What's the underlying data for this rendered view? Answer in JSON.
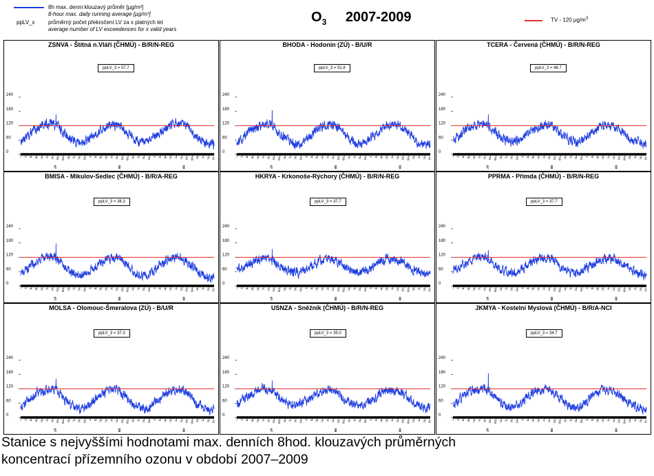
{
  "legend": {
    "line_label": "8h max. denni klouzavý průměr [µg/m³]",
    "line_label_en": "8-hour max. daily running average [µg/m³]",
    "pplv_key": "ppLV_x",
    "pplv_desc": "průměrný počet překročení LV za x platných let",
    "pplv_desc_en": "average number of LV exceedences for x valid years",
    "series_color": "#1f3fe0"
  },
  "title": {
    "symbol": "O",
    "subscript": "3",
    "years": "2007-2009"
  },
  "tv_legend": {
    "label": "TV - 120 µg/m",
    "sup": "3",
    "color": "#e03030"
  },
  "caption": {
    "line1": "Stanice s nejvyššími hodnotami max. denních 8hod. klouzavých průměrných",
    "line2": "koncentrací přízemního ozonu v období 2007–2009"
  },
  "chart_data": [
    {
      "type": "line",
      "title": "ZSNVA - Štítná n.Vláří (ČHMÚ) - B/R/N-REG",
      "pplv": "ppLV_3 = 57.7",
      "ylim": [
        0,
        240
      ],
      "yticks": [
        0,
        60,
        120,
        180,
        240
      ],
      "threshold": 120,
      "months": [
        "I",
        "II",
        "III",
        "IV",
        "V",
        "VI",
        "VII",
        "VIII",
        "IX",
        "X",
        "XI",
        "XII"
      ],
      "years": [
        "07",
        "08",
        "09"
      ],
      "monthly_avg": [
        55,
        72,
        90,
        108,
        122,
        128,
        130,
        118,
        90,
        70,
        55,
        48,
        52,
        70,
        88,
        104,
        115,
        122,
        124,
        112,
        88,
        68,
        52,
        46,
        58,
        74,
        92,
        110,
        124,
        130,
        126,
        114,
        90,
        70,
        52,
        44
      ],
      "peak": 168
    },
    {
      "type": "line",
      "title": "BHODA - Hodonín (ZÚ) - B/U/R",
      "pplv": "ppLV_3 = 51.8",
      "ylim": [
        0,
        240
      ],
      "yticks": [
        0,
        60,
        120,
        180,
        240
      ],
      "threshold": 120,
      "months": [
        "I",
        "II",
        "III",
        "IV",
        "V",
        "VI",
        "VII",
        "VIII",
        "IX",
        "X",
        "XI",
        "XII"
      ],
      "years": [
        "07",
        "08",
        "09"
      ],
      "monthly_avg": [
        48,
        66,
        86,
        104,
        118,
        126,
        128,
        116,
        88,
        66,
        50,
        42,
        46,
        64,
        86,
        102,
        116,
        122,
        128,
        112,
        86,
        64,
        48,
        40,
        52,
        70,
        90,
        108,
        120,
        126,
        124,
        110,
        86,
        64,
        46,
        38
      ],
      "peak": 185
    },
    {
      "type": "line",
      "title": "TCERA - Červená (ČHMÚ) - B/R/N-REG",
      "pplv": "ppLV_3 = 48.7",
      "ylim": [
        0,
        240
      ],
      "yticks": [
        0,
        60,
        120,
        180,
        240
      ],
      "threshold": 120,
      "months": [
        "I",
        "II",
        "III",
        "IV",
        "V",
        "VI",
        "VII",
        "VIII",
        "IX",
        "X",
        "XI",
        "XII"
      ],
      "years": [
        "07",
        "08",
        "09"
      ],
      "monthly_avg": [
        60,
        76,
        94,
        110,
        122,
        126,
        124,
        112,
        86,
        70,
        58,
        52,
        58,
        72,
        90,
        104,
        116,
        120,
        122,
        110,
        86,
        68,
        56,
        50,
        60,
        76,
        94,
        110,
        120,
        122,
        118,
        104,
        84,
        66,
        52,
        44
      ],
      "peak": 168
    },
    {
      "type": "line",
      "title": "BMISA - Mikulov-Sedlec (ČHMÚ) - B/R/A-REG",
      "pplv": "ppLV_3 = 38.3",
      "ylim": [
        0,
        240
      ],
      "yticks": [
        0,
        60,
        120,
        180,
        240
      ],
      "threshold": 120,
      "months": [
        "I",
        "II",
        "III",
        "IV",
        "V",
        "VI",
        "VII",
        "VIII",
        "IX",
        "X",
        "XI",
        "XII"
      ],
      "years": [
        "07",
        "08",
        "09"
      ],
      "monthly_avg": [
        52,
        70,
        88,
        104,
        116,
        122,
        124,
        110,
        84,
        62,
        48,
        42,
        46,
        64,
        84,
        100,
        110,
        116,
        118,
        104,
        80,
        60,
        46,
        40,
        50,
        68,
        88,
        104,
        114,
        118,
        114,
        100,
        78,
        58,
        44,
        36
      ],
      "peak": 178
    },
    {
      "type": "line",
      "title": "HKRYA - Krkonoše-Rýchory (ČHMÚ) - B/R/N-REG",
      "pplv": "ppLV_3 = 37.7",
      "ylim": [
        0,
        240
      ],
      "yticks": [
        0,
        60,
        120,
        180,
        240
      ],
      "threshold": 120,
      "months": [
        "I",
        "II",
        "III",
        "IV",
        "V",
        "VI",
        "VII",
        "VIII",
        "IX",
        "X",
        "XI",
        "XII"
      ],
      "years": [
        "07",
        "08",
        "09"
      ],
      "monthly_avg": [
        62,
        76,
        92,
        104,
        112,
        114,
        110,
        100,
        82,
        70,
        60,
        56,
        60,
        74,
        90,
        102,
        110,
        112,
        110,
        98,
        80,
        68,
        58,
        54,
        64,
        78,
        94,
        106,
        114,
        114,
        108,
        96,
        80,
        66,
        56,
        50
      ],
      "peak": 155
    },
    {
      "type": "line",
      "title": "PPRMA - Přimda (ČHMÚ) - B/R/N-REG",
      "pplv": "ppLV_3 = 37.7",
      "ylim": [
        0,
        240
      ],
      "yticks": [
        0,
        60,
        120,
        180,
        240
      ],
      "threshold": 120,
      "months": [
        "I",
        "II",
        "III",
        "IV",
        "V",
        "VI",
        "VII",
        "VIII",
        "IX",
        "X",
        "XI",
        "XII"
      ],
      "years": [
        "07",
        "08",
        "09"
      ],
      "monthly_avg": [
        62,
        76,
        92,
        106,
        116,
        118,
        116,
        104,
        84,
        70,
        60,
        54,
        60,
        74,
        90,
        104,
        114,
        116,
        116,
        102,
        82,
        68,
        58,
        52,
        62,
        76,
        92,
        106,
        114,
        116,
        112,
        100,
        82,
        66,
        56,
        50
      ],
      "peak": 150
    },
    {
      "type": "line",
      "title": "MOLSA - Olomouc-Šmeralova (ZÚ) - B/U/R",
      "pplv": "ppLV_3 = 37.3",
      "ylim": [
        0,
        240
      ],
      "yticks": [
        0,
        60,
        120,
        180,
        240
      ],
      "threshold": 120,
      "months": [
        "I",
        "II",
        "III",
        "IV",
        "V",
        "VI",
        "VII",
        "VIII",
        "IX",
        "X",
        "XI",
        "XII"
      ],
      "years": [
        "07",
        "08",
        "09"
      ],
      "monthly_avg": [
        46,
        64,
        84,
        100,
        112,
        118,
        120,
        106,
        80,
        58,
        44,
        38,
        42,
        60,
        80,
        98,
        110,
        114,
        116,
        102,
        78,
        56,
        42,
        36,
        46,
        64,
        84,
        102,
        112,
        116,
        112,
        98,
        76,
        54,
        40,
        32
      ],
      "peak": 162
    },
    {
      "type": "line",
      "title": "USNZA - Sněžník (ČHMÚ) - B/R/N-REG",
      "pplv": "ppLV_3 = 35.0",
      "ylim": [
        0,
        240
      ],
      "yticks": [
        0,
        60,
        120,
        180,
        240
      ],
      "threshold": 120,
      "months": [
        "I",
        "II",
        "III",
        "IV",
        "V",
        "VI",
        "VII",
        "VIII",
        "IX",
        "X",
        "XI",
        "XII"
      ],
      "years": [
        "07",
        "08",
        "09"
      ],
      "monthly_avg": [
        56,
        72,
        90,
        104,
        114,
        118,
        116,
        102,
        80,
        64,
        54,
        48,
        54,
        70,
        88,
        102,
        112,
        116,
        114,
        100,
        78,
        62,
        52,
        46,
        56,
        72,
        90,
        104,
        112,
        114,
        110,
        98,
        78,
        60,
        48,
        42
      ],
      "peak": 155
    },
    {
      "type": "line",
      "title": "JKMYA - Kostelní Myslová (ČHMÚ) - B/R/A-NCI",
      "pplv": "ppLV_3 = 34.7",
      "ylim": [
        0,
        240
      ],
      "yticks": [
        0,
        60,
        120,
        180,
        240
      ],
      "threshold": 120,
      "months": [
        "I",
        "II",
        "III",
        "IV",
        "V",
        "VI",
        "VII",
        "VIII",
        "IX",
        "X",
        "XI",
        "XII"
      ],
      "years": [
        "07",
        "08",
        "09"
      ],
      "monthly_avg": [
        56,
        72,
        90,
        106,
        116,
        120,
        118,
        104,
        80,
        62,
        50,
        44,
        52,
        68,
        88,
        104,
        112,
        116,
        116,
        100,
        78,
        60,
        48,
        42,
        54,
        70,
        90,
        104,
        112,
        114,
        110,
        96,
        76,
        58,
        46,
        38
      ],
      "peak": 185
    }
  ]
}
